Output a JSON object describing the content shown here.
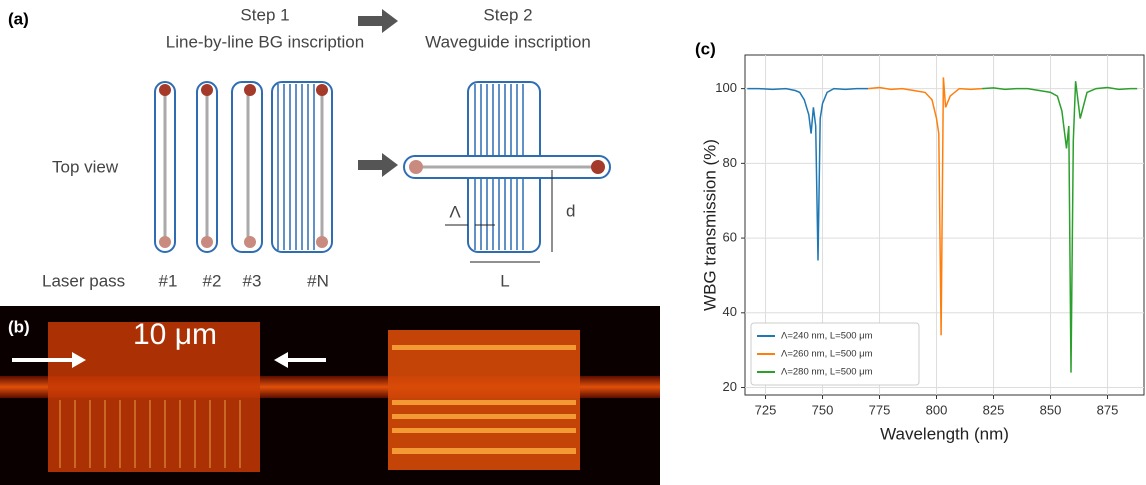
{
  "diagram": {
    "label": "(a)",
    "step1": "Step 1",
    "step1_desc": "Line-by-line BG inscription",
    "step2": "Step 2",
    "step2_desc": "Waveguide inscription",
    "top_view": "Top view",
    "laser_pass": "Laser pass",
    "passes": [
      "#1",
      "#2",
      "#3",
      "#N"
    ],
    "period": "Λ",
    "depth": "d",
    "length": "L"
  },
  "micrograph": {
    "label": "(b)",
    "scale": "10 μm"
  },
  "chart_data": {
    "type": "line",
    "label": "(c)",
    "xlabel": "Wavelength (nm)",
    "ylabel": "WBG transmission (%)",
    "xlim": [
      716,
      891
    ],
    "ylim": [
      18,
      109
    ],
    "xticks": [
      725,
      750,
      775,
      800,
      825,
      850,
      875
    ],
    "yticks": [
      20,
      40,
      60,
      80,
      100
    ],
    "grid": true,
    "legend": "lower left",
    "series": [
      {
        "name": "Λ=240 nm, L=500 μm",
        "color": "#1f77b4",
        "x": [
          717,
          722,
          728,
          734,
          738,
          740,
          742,
          744,
          745,
          746,
          747,
          748,
          749,
          750,
          752,
          755,
          760,
          765,
          770
        ],
        "values": [
          100,
          100,
          99.8,
          100,
          99.5,
          99,
          97,
          93,
          88,
          95,
          90,
          54,
          92,
          96,
          99,
          100,
          99.8,
          100,
          100
        ]
      },
      {
        "name": "Λ=260 nm, L=500 μm",
        "color": "#ff7f0e",
        "x": [
          770,
          775,
          780,
          785,
          790,
          795,
          798,
          800,
          801,
          802,
          803,
          804,
          806,
          810,
          815,
          820
        ],
        "values": [
          100,
          100.3,
          99.8,
          100,
          99.5,
          99,
          97,
          92,
          88,
          34,
          103,
          95,
          98,
          100,
          99.8,
          100
        ]
      },
      {
        "name": "Λ=280 nm, L=500 μm",
        "color": "#2ca02c",
        "x": [
          820,
          825,
          830,
          835,
          840,
          845,
          850,
          853,
          855,
          857,
          858,
          859,
          860,
          861,
          863,
          866,
          870,
          875,
          880,
          885,
          888
        ],
        "values": [
          100,
          100.2,
          99.8,
          100,
          100,
          99.5,
          99,
          98,
          94,
          84,
          90,
          24,
          86,
          102,
          92,
          99,
          100,
          100.3,
          99.8,
          100,
          100
        ]
      }
    ]
  }
}
